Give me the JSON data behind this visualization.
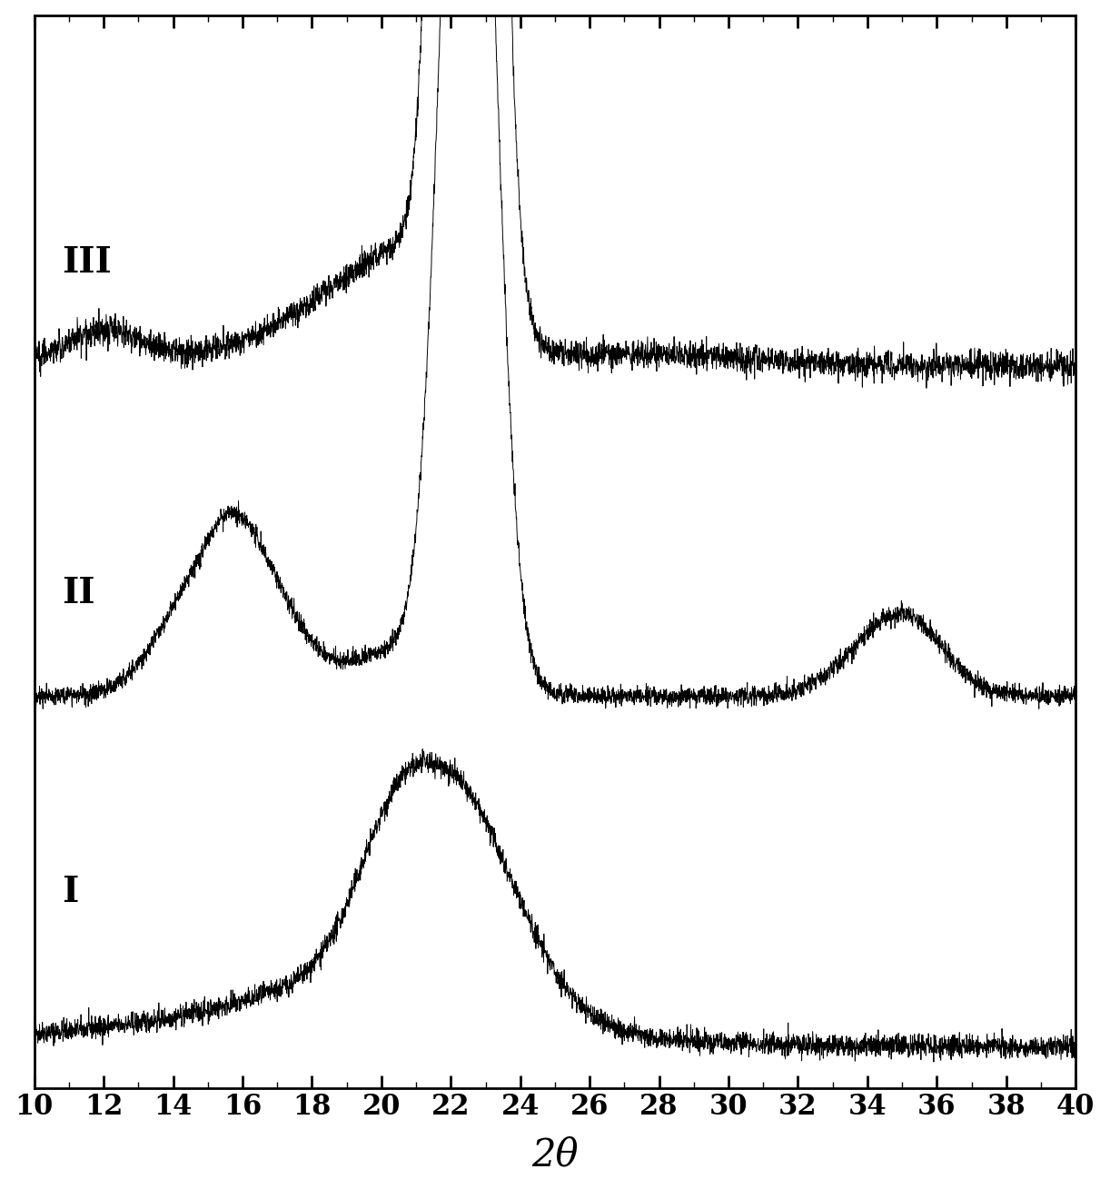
{
  "x_min": 10,
  "x_max": 40,
  "x_ticks": [
    10,
    12,
    14,
    16,
    18,
    20,
    22,
    24,
    26,
    28,
    30,
    32,
    34,
    36,
    38,
    40
  ],
  "xlabel": "2θ",
  "xlabel_fontsize": 30,
  "tick_fontsize": 22,
  "line_color": "#000000",
  "background_color": "#ffffff",
  "label_I": "I",
  "label_II": "II",
  "label_III": "III",
  "noise_scale": 0.008,
  "seed": 42
}
